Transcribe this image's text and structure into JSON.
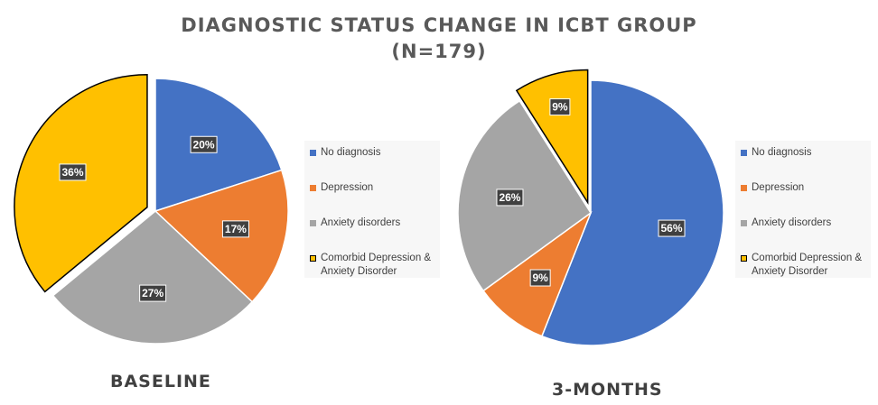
{
  "title_line1": "DIAGNOSTIC STATUS CHANGE IN ICBT GROUP",
  "title_line2": "(N=179)",
  "colors": {
    "No diagnosis": "#4472c4",
    "Depression": "#ed7d31",
    "Anxiety disorders": "#a5a5a5",
    "Comorbid Depression & Anxiety Disorder": "#ffc000"
  },
  "chart_data": [
    {
      "type": "pie",
      "title": "BASELINE",
      "legend_placement": "right",
      "categories": [
        "No diagnosis",
        "Depression",
        "Anxiety disorders",
        "Comorbid Depression & Anxiety Disorder"
      ],
      "values": [
        20,
        17,
        27,
        36
      ],
      "labels": [
        "20%",
        "17%",
        "27%",
        "36%"
      ],
      "exploded": "Comorbid Depression & Anxiety Disorder"
    },
    {
      "type": "pie",
      "title": "3-MONTHS",
      "legend_placement": "right",
      "categories": [
        "No diagnosis",
        "Depression",
        "Anxiety disorders",
        "Comorbid Depression & Anxiety Disorder"
      ],
      "values": [
        56,
        9,
        26,
        9
      ],
      "labels": [
        "56%",
        "9%",
        "26%",
        "9%"
      ],
      "exploded": "Comorbid Depression & Anxiety Disorder"
    }
  ]
}
